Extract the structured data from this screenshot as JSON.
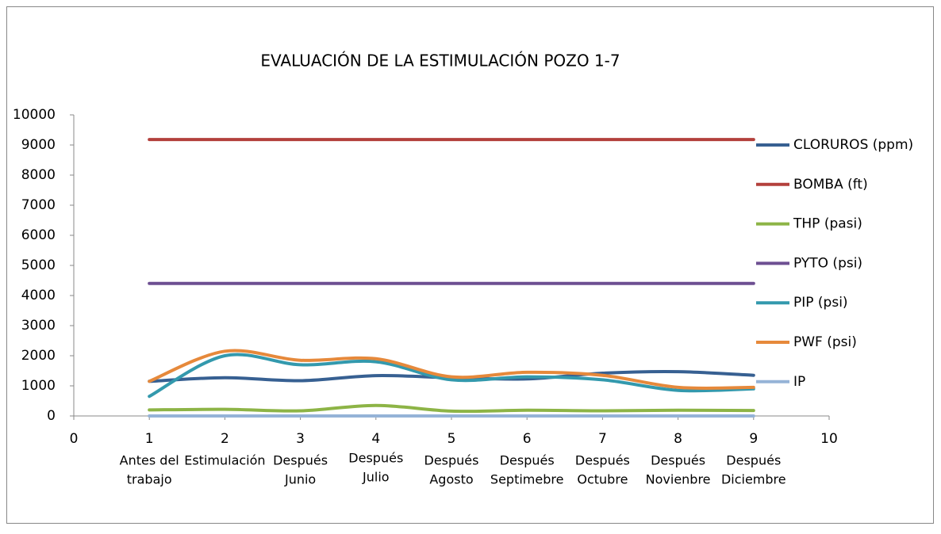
{
  "chart_data": {
    "type": "line",
    "title": "EVALUACIÓN DE LA ESTIMULACIÓN POZO 1-7",
    "x": [
      1,
      2,
      3,
      4,
      5,
      6,
      7,
      8,
      9
    ],
    "categories": [
      [
        "Antes del",
        "trabajo"
      ],
      [
        "Estimulación"
      ],
      [
        "Después",
        "Junio"
      ],
      [
        "Después",
        "Julio"
      ],
      [
        "Después",
        "Agosto"
      ],
      [
        "Después",
        "Septimebre"
      ],
      [
        "Después",
        "Octubre"
      ],
      [
        "Después",
        "Novienbre"
      ],
      [
        "Después",
        "Diciembre"
      ]
    ],
    "xlim": [
      0,
      10
    ],
    "xticks": [
      0,
      1,
      2,
      3,
      4,
      5,
      6,
      7,
      8,
      9,
      10
    ],
    "ylim": [
      0,
      10000
    ],
    "yticks": [
      0,
      1000,
      2000,
      3000,
      4000,
      5000,
      6000,
      7000,
      8000,
      9000,
      10000
    ],
    "grid": false,
    "legend": "right",
    "smooth": true,
    "series": [
      {
        "name": "CLORUROS (ppm)",
        "color": "#376092",
        "values": [
          1150,
          1270,
          1170,
          1340,
          1270,
          1230,
          1420,
          1470,
          1350
        ]
      },
      {
        "name": "BOMBA (ft)",
        "color": "#b3403c",
        "values": [
          9180,
          9180,
          9180,
          9180,
          9180,
          9180,
          9180,
          9180,
          9180
        ]
      },
      {
        "name": "THP (pasi)",
        "color": "#8db446",
        "values": [
          200,
          220,
          170,
          350,
          160,
          190,
          170,
          190,
          180
        ]
      },
      {
        "name": "PYTO (psi)",
        "color": "#6d4f92",
        "values": [
          4400,
          4400,
          4400,
          4400,
          4400,
          4400,
          4400,
          4400,
          4400
        ]
      },
      {
        "name": "PIP (psi)",
        "color": "#3399ad",
        "values": [
          650,
          2000,
          1700,
          1800,
          1200,
          1300,
          1200,
          850,
          900
        ]
      },
      {
        "name": "PWF (psi)",
        "color": "#e6893b",
        "values": [
          1150,
          2150,
          1850,
          1900,
          1300,
          1450,
          1350,
          950,
          950
        ]
      },
      {
        "name": "IP",
        "color": "#95b3d7",
        "values": [
          1,
          1,
          1,
          1,
          1,
          1,
          1,
          1,
          1
        ]
      }
    ]
  }
}
